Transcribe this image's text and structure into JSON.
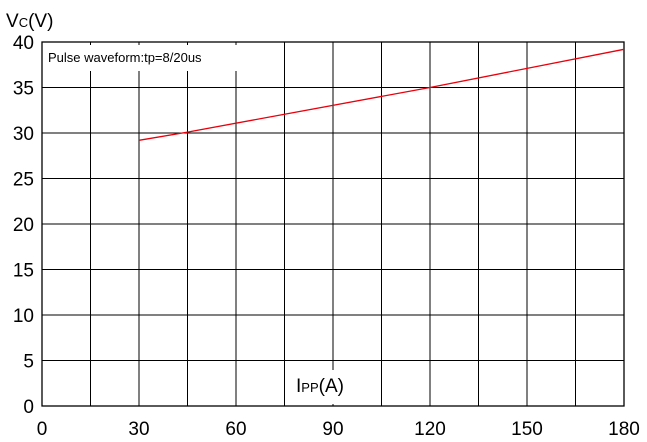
{
  "chart_data": {
    "type": "line",
    "title": "",
    "annotation": "Pulse waveform:tp=8/20us",
    "ylabel": {
      "main": "V",
      "sub": "C",
      "unit": "(V)"
    },
    "xlabel": {
      "main": "I",
      "sub": "PP",
      "unit": "(A)"
    },
    "xlim": [
      0,
      180
    ],
    "ylim": [
      0,
      40
    ],
    "x_ticks": [
      "0",
      "30",
      "60",
      "90",
      "120",
      "150",
      "180"
    ],
    "y_ticks": [
      "0",
      "5",
      "10",
      "15",
      "20",
      "25",
      "30",
      "35",
      "40"
    ],
    "x_grid_step": 15,
    "y_grid_step": 5,
    "grid": true,
    "series": [
      {
        "color": "#e8000b",
        "x": [
          30,
          45,
          120,
          180
        ],
        "y": [
          29.2,
          30.1,
          35.0,
          39.2
        ]
      }
    ]
  }
}
